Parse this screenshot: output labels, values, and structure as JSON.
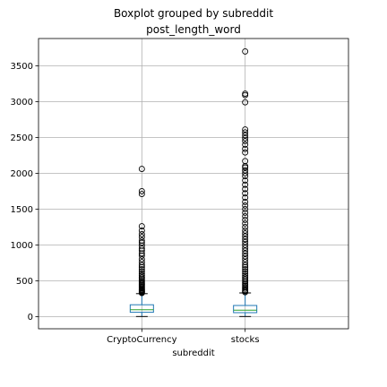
{
  "chart_data": {
    "type": "boxplot",
    "suptitle": "Boxplot grouped by subreddit",
    "title": "post_length_word",
    "xlabel": "subreddit",
    "ylabel": "",
    "categories": [
      "CryptoCurrency",
      "stocks"
    ],
    "ylim": [
      -170,
      3880
    ],
    "yticks": [
      0,
      500,
      1000,
      1500,
      2000,
      2500,
      3000,
      3500
    ],
    "grid": true,
    "box_color": "#1f77b4",
    "median_color": "#2ca02c",
    "boxes": [
      {
        "name": "CryptoCurrency",
        "whisker_low": 1,
        "q1": 60,
        "median": 95,
        "q3": 165,
        "whisker_high": 320,
        "outliers": [
          330,
          340,
          350,
          360,
          370,
          380,
          395,
          410,
          425,
          440,
          455,
          470,
          490,
          510,
          530,
          550,
          575,
          600,
          630,
          660,
          690,
          720,
          760,
          800,
          850,
          880,
          920,
          950,
          990,
          1030,
          1060,
          1110,
          1150,
          1200,
          1260,
          1710,
          1750,
          2060
        ]
      },
      {
        "name": "stocks",
        "whisker_low": 1,
        "q1": 55,
        "median": 90,
        "q3": 155,
        "whisker_high": 330,
        "outliers": [
          340,
          355,
          370,
          390,
          410,
          430,
          450,
          470,
          495,
          520,
          545,
          570,
          600,
          630,
          660,
          690,
          720,
          760,
          800,
          840,
          880,
          920,
          960,
          1000,
          1040,
          1080,
          1120,
          1160,
          1200,
          1250,
          1300,
          1350,
          1400,
          1450,
          1500,
          1550,
          1600,
          1660,
          1720,
          1780,
          1840,
          1900,
          1960,
          2000,
          2040,
          2080,
          2100,
          2170,
          2290,
          2340,
          2400,
          2450,
          2490,
          2530,
          2570,
          2610,
          2990,
          3090,
          3110,
          3700
        ]
      }
    ]
  }
}
